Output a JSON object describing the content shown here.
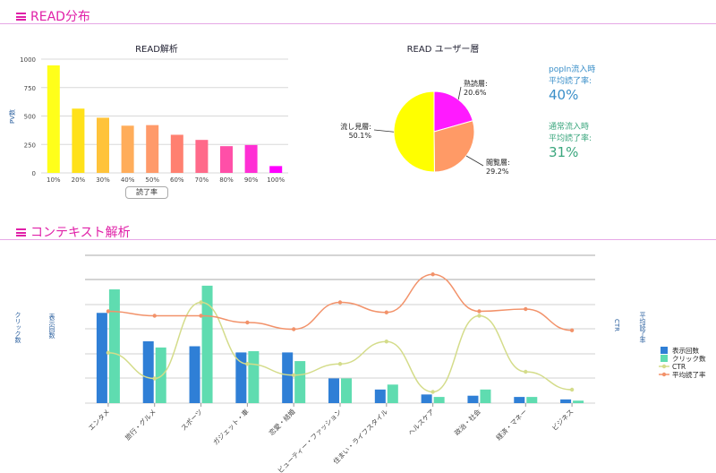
{
  "sections": {
    "read": "READ分布",
    "context": "コンテキスト解析"
  },
  "read_chart": {
    "title": "READ解析",
    "ylabel": "PV数",
    "legend_button": "読了率"
  },
  "pie_chart": {
    "title": "READ ユーザー層",
    "labels": [
      {
        "name": "熟読層:",
        "pct": "20.6%"
      },
      {
        "name": "閲覧層:",
        "pct": "29.2%"
      },
      {
        "name": "流し見層:",
        "pct": "50.1%"
      }
    ]
  },
  "stats": {
    "popin_label1": "popIn流入時",
    "popin_label2": "平均読了率:",
    "popin_value": "40%",
    "normal_label1": "通常流入時",
    "normal_label2": "平均読了率:",
    "normal_value": "31%"
  },
  "context_axes": {
    "left1": "クリック数",
    "left2": "表示回数",
    "right1": "CTR",
    "right2": "平均読了率"
  },
  "chart_data": [
    {
      "type": "bar",
      "title": "READ解析",
      "xlabel": "",
      "ylabel": "PV数",
      "categories": [
        "10%",
        "20%",
        "30%",
        "40%",
        "50%",
        "60%",
        "70%",
        "80%",
        "90%",
        "100%"
      ],
      "values": [
        945,
        565,
        485,
        415,
        420,
        335,
        290,
        235,
        245,
        60
      ],
      "colors": [
        "#ffff1a",
        "#ffe11a",
        "#ffc33a",
        "#ffad5a",
        "#ff9a6a",
        "#ff8070",
        "#ff6a8a",
        "#ff4fa8",
        "#ff2fd4",
        "#ff00ff"
      ],
      "ylim": [
        0,
        1000
      ],
      "yticks": [
        0,
        250,
        500,
        750,
        1000
      ],
      "grid": true
    },
    {
      "type": "pie",
      "title": "READ ユーザー層",
      "categories": [
        "熟読層",
        "閲覧層",
        "流し見層"
      ],
      "values": [
        20.6,
        29.2,
        50.1
      ],
      "colors": [
        "#ff1aff",
        "#ff9a66",
        "#ffff00"
      ]
    },
    {
      "type": "bar",
      "title": "",
      "categories": [
        "エンタメ",
        "旅行・グルメ",
        "スポーツ",
        "ガジェット・車",
        "恋愛・結婚",
        "ビューティー・ファッション",
        "住まい・ライフスタイル",
        "ヘルスケア",
        "政治・社会",
        "経済・マネー",
        "ビジネス"
      ],
      "series": [
        {
          "name": "表示回数",
          "kind": "bar",
          "color": "#2f7fd6",
          "values": [
            73,
            50,
            46,
            41,
            41,
            20,
            11,
            7,
            6,
            5,
            3
          ]
        },
        {
          "name": "クリック数",
          "kind": "bar",
          "color": "#5fdcb0",
          "values": [
            92,
            45,
            95,
            42,
            34,
            20,
            15,
            5,
            11,
            5,
            2
          ]
        },
        {
          "name": "CTR",
          "kind": "line",
          "color": "#d4dc8a",
          "values": [
            45,
            22,
            90,
            35,
            25,
            35,
            55,
            10,
            78,
            28,
            12
          ]
        },
        {
          "name": "平均読了率",
          "kind": "line",
          "color": "#f2926a",
          "values": [
            82,
            78,
            78,
            72,
            66,
            90,
            81,
            115,
            82,
            84,
            65
          ]
        }
      ],
      "grid": true,
      "legend": "right"
    }
  ]
}
